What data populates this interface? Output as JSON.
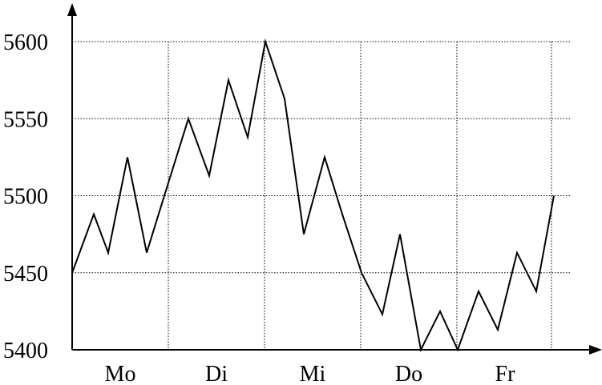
{
  "chart_data": {
    "type": "line",
    "title": "",
    "xlabel": "",
    "ylabel": "",
    "categories": [
      "Mo",
      "Di",
      "Mi",
      "Do",
      "Fr"
    ],
    "y_ticks": [
      "5400",
      "5450",
      "5500",
      "5550",
      "5600"
    ],
    "ylim": [
      5400,
      5600
    ],
    "xlim": [
      0,
      5
    ],
    "grid": true,
    "series": [
      {
        "x": [
          0.0,
          0.225,
          0.375,
          0.575,
          0.775,
          0.958,
          1.208,
          1.425,
          1.625,
          1.825,
          2.008,
          2.208,
          2.408,
          2.625,
          2.808,
          3.008,
          3.225,
          3.408,
          3.625,
          3.825,
          4.008,
          4.225,
          4.425,
          4.625,
          4.825,
          5.008
        ],
        "values": [
          5450,
          5488,
          5463,
          5525,
          5463,
          5500,
          5550,
          5513,
          5575,
          5538,
          5600,
          5563,
          5475,
          5525,
          5488,
          5450,
          5423,
          5475,
          5400,
          5425,
          5400,
          5438,
          5413,
          5463,
          5438,
          5500
        ]
      }
    ]
  }
}
